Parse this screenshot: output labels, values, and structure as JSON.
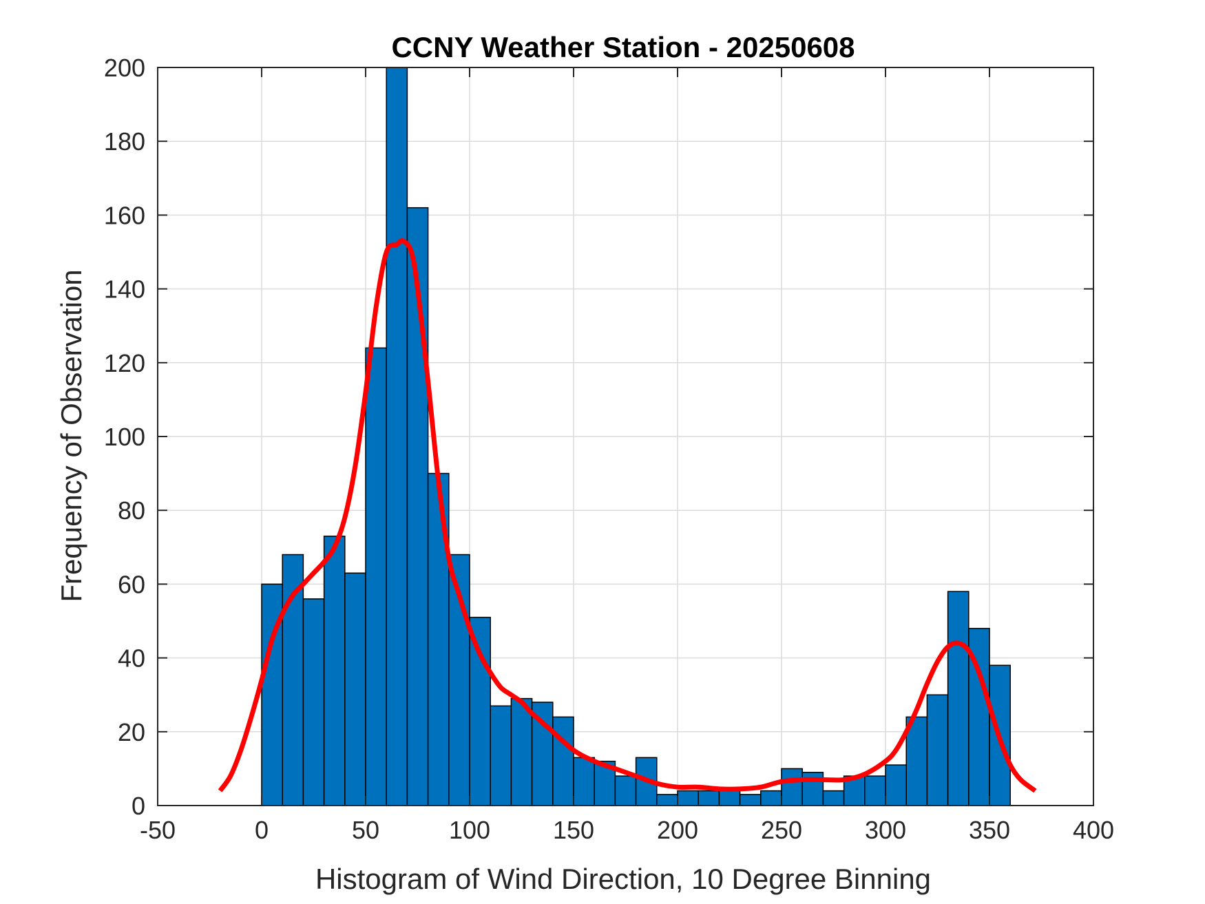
{
  "chart_data": {
    "type": "bar",
    "title": "CCNY Weather Station - 20250608",
    "xlabel": "Histogram of Wind Direction, 10 Degree Binning",
    "ylabel": "Frequency of Observation",
    "xlim": [
      -50,
      400
    ],
    "ylim": [
      0,
      200
    ],
    "grid": true,
    "x_ticks": [
      -50,
      0,
      50,
      100,
      150,
      200,
      250,
      300,
      350,
      400
    ],
    "y_ticks": [
      0,
      20,
      40,
      60,
      80,
      100,
      120,
      140,
      160,
      180,
      200
    ],
    "bin_width": 10,
    "bin_starts": [
      0,
      10,
      20,
      30,
      40,
      50,
      60,
      70,
      80,
      90,
      100,
      110,
      120,
      130,
      140,
      150,
      160,
      170,
      180,
      190,
      200,
      210,
      220,
      230,
      240,
      250,
      260,
      270,
      280,
      290,
      300,
      310,
      320,
      330,
      340,
      350
    ],
    "values": [
      60,
      68,
      56,
      73,
      63,
      124,
      200,
      162,
      90,
      68,
      51,
      27,
      29,
      28,
      24,
      13,
      12,
      8,
      13,
      3,
      4,
      4,
      4,
      3,
      4,
      10,
      9,
      4,
      8,
      8,
      11,
      24,
      30,
      58,
      48,
      38
    ],
    "series": [
      {
        "name": "histogram",
        "kind": "bar",
        "color": "#0072BD",
        "edge_color": "#000000"
      },
      {
        "name": "density fit",
        "kind": "line",
        "color": "#FF0000",
        "x": [
          -20,
          -15,
          -10,
          -5,
          0,
          5,
          10,
          15,
          20,
          25,
          30,
          35,
          40,
          45,
          50,
          55,
          60,
          65,
          68,
          72,
          75,
          80,
          85,
          90,
          95,
          100,
          105,
          110,
          115,
          120,
          125,
          130,
          140,
          150,
          160,
          170,
          180,
          190,
          200,
          210,
          220,
          230,
          240,
          250,
          260,
          270,
          280,
          290,
          300,
          305,
          310,
          315,
          320,
          325,
          330,
          335,
          340,
          345,
          350,
          355,
          360,
          365,
          372
        ],
        "y": [
          4,
          8,
          15,
          24,
          34,
          45,
          52,
          57,
          60,
          63,
          66,
          70,
          78,
          92,
          112,
          135,
          150,
          152,
          153,
          150,
          140,
          115,
          88,
          67,
          57,
          48,
          41,
          36,
          32,
          30,
          28,
          25,
          20,
          15,
          12,
          10,
          8,
          6,
          5,
          5,
          4.5,
          4.5,
          5,
          6.5,
          7,
          7,
          7,
          8.5,
          12,
          15,
          20,
          26,
          33,
          39,
          43,
          44,
          42,
          36,
          27,
          18,
          11,
          7,
          4
        ]
      }
    ]
  }
}
